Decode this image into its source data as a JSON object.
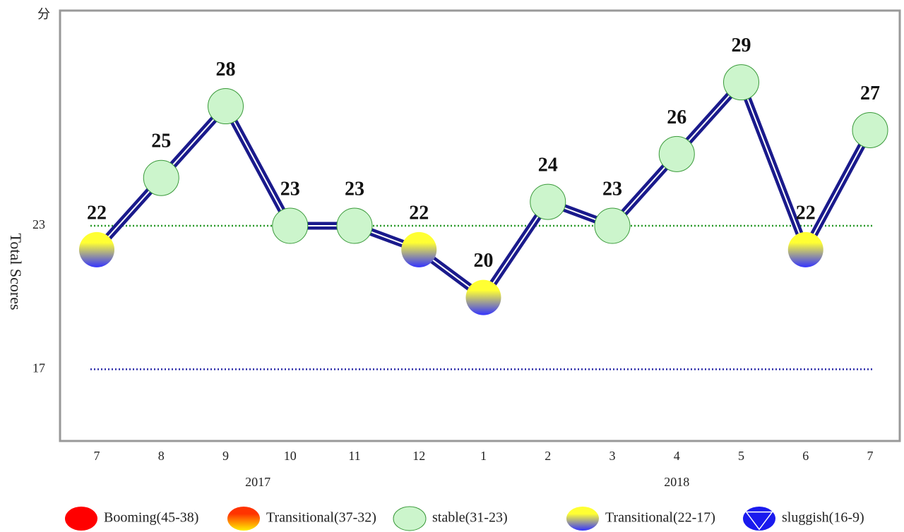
{
  "chart_data": {
    "type": "line",
    "y_unit": "分",
    "y_label": "Total Scores",
    "categories": [
      "7",
      "8",
      "9",
      "10",
      "11",
      "12",
      "1",
      "2",
      "3",
      "4",
      "5",
      "6",
      "7"
    ],
    "year_labels": [
      "2017",
      "2018"
    ],
    "values": [
      22,
      25,
      28,
      23,
      23,
      22,
      20,
      24,
      23,
      26,
      29,
      22,
      27
    ],
    "line_color": "#1a1a8c",
    "ylim": [
      14,
      32
    ],
    "yticks": [
      17,
      23
    ],
    "reference_lines": [
      {
        "value": 17,
        "color": "#2a2aa8"
      },
      {
        "value": 23,
        "color": "#2a9a2a"
      }
    ],
    "zones": [
      {
        "name": "Booming(45-38)",
        "min": 38,
        "max": 45,
        "colors": [
          "#ff0000",
          "#ff0000"
        ]
      },
      {
        "name": "Transitional(37-32)",
        "min": 32,
        "max": 37,
        "colors": [
          "#ff3300",
          "#ffee00"
        ]
      },
      {
        "name": "stable(31-23)",
        "min": 23,
        "max": 31,
        "colors": [
          "#ccf5cc",
          "#ccf5cc"
        ]
      },
      {
        "name": "Transitional(22-17)",
        "min": 17,
        "max": 22,
        "colors": [
          "#ffff33",
          "#3333ff"
        ]
      },
      {
        "name": "sluggish(16-9)",
        "min": 9,
        "max": 16,
        "colors": [
          "#1a1aee",
          "#1a1aee"
        ],
        "marker": "triangle-down"
      }
    ]
  }
}
